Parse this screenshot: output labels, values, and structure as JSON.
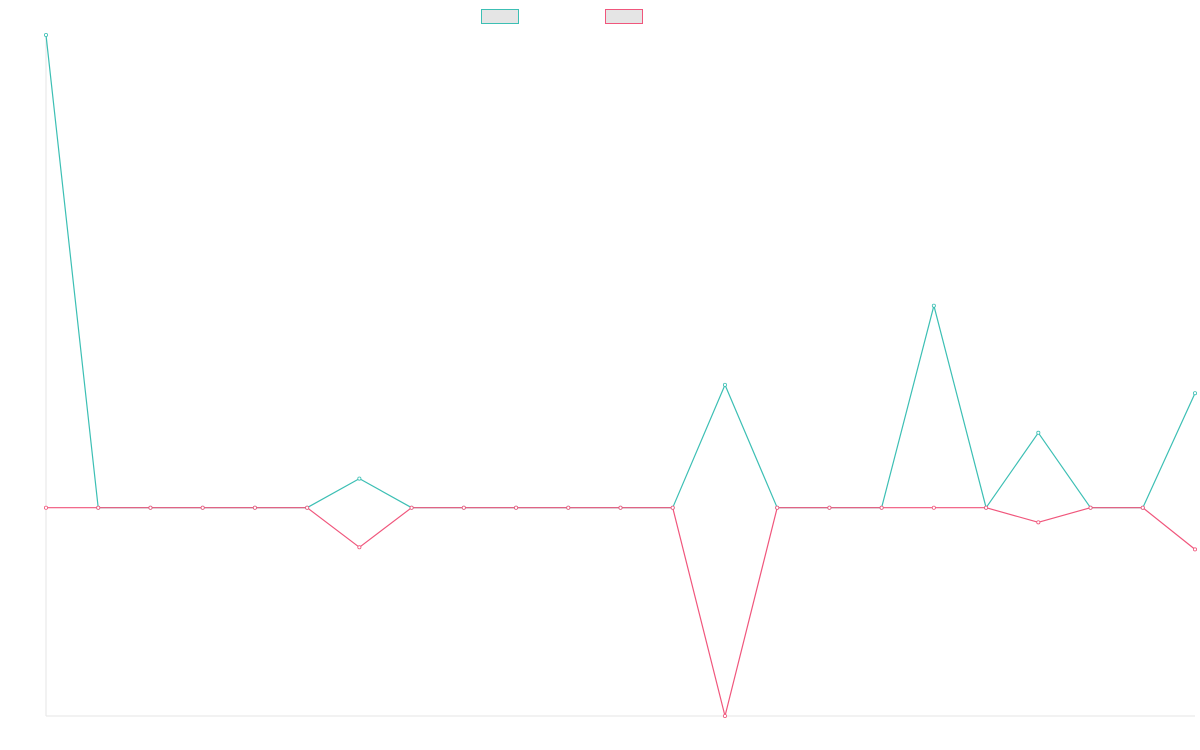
{
  "chart_data": {
    "type": "line",
    "title": "",
    "xlabel": "",
    "ylabel": "",
    "grid": false,
    "legend_position": "top-center",
    "x_count": 23,
    "ylim": [
      -1,
      2.27
    ],
    "baseline": 0,
    "series": [
      {
        "color": "#3cbfb4",
        "values": [
          2.27,
          0,
          0,
          0,
          0,
          0,
          0.14,
          0,
          0,
          0,
          0,
          0,
          0,
          0.59,
          0,
          0,
          0,
          0.97,
          0,
          0.36,
          0,
          0,
          0.55
        ]
      },
      {
        "color": "#f0567c",
        "values": [
          0,
          0,
          0,
          0,
          0,
          0,
          -0.19,
          0,
          0,
          0,
          0,
          0,
          0,
          -1,
          0,
          0,
          0,
          0,
          0,
          -0.07,
          0,
          0,
          -0.2
        ]
      }
    ]
  }
}
